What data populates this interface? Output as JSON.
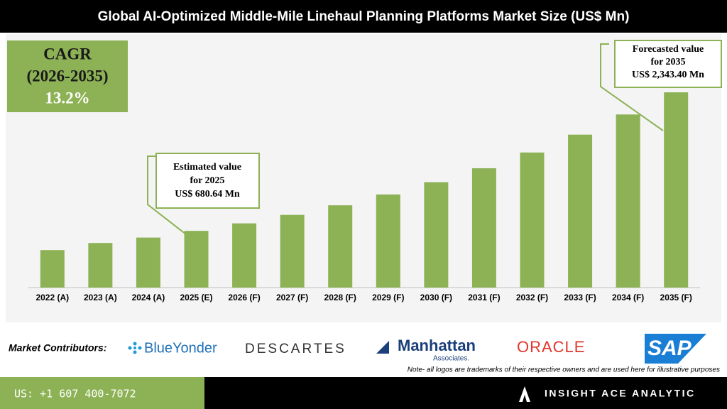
{
  "chart_data": {
    "type": "bar",
    "title": "Global AI-Optimized Middle-Mile Linehaul Planning Platforms Market Size (US$ Mn)",
    "categories": [
      "2022 (A)",
      "2023 (A)",
      "2024 (A)",
      "2025 (E)",
      "2026 (F)",
      "2027 (F)",
      "2028 (F)",
      "2029 (F)",
      "2030 (F)",
      "2031 (F)",
      "2032 (F)",
      "2033 (F)",
      "2034 (F)",
      "2035 (F)"
    ],
    "values": [
      450,
      535,
      600,
      680.64,
      770.5,
      872.2,
      987.3,
      1117.6,
      1265.1,
      1432.1,
      1621.1,
      1835.1,
      2077.3,
      2343.4
    ],
    "color": "#8db255",
    "annotations": [
      {
        "lines": [
          "Estimated value",
          "for 2025",
          "US$ 680.64 Mn"
        ]
      },
      {
        "lines": [
          "Forecasted value",
          "for 2035",
          "US$ 2,343.40 Mn"
        ]
      }
    ]
  },
  "cagr": {
    "lines": [
      "CAGR",
      "(2026-2035)",
      "13.2%"
    ]
  },
  "footer": {
    "contributors_label": "Market Contributors:",
    "logos": [
      "BlueYonder",
      "DESCARTES",
      "Manhattan",
      "Associates.",
      "ORACLE",
      "SAP"
    ],
    "note": "Note- all logos are trademarks of their respective owners and are used here for illustrative purposes",
    "phone": "US: +1 607 400-7072",
    "brand": "INSIGHT ACE ANALYTIC"
  }
}
